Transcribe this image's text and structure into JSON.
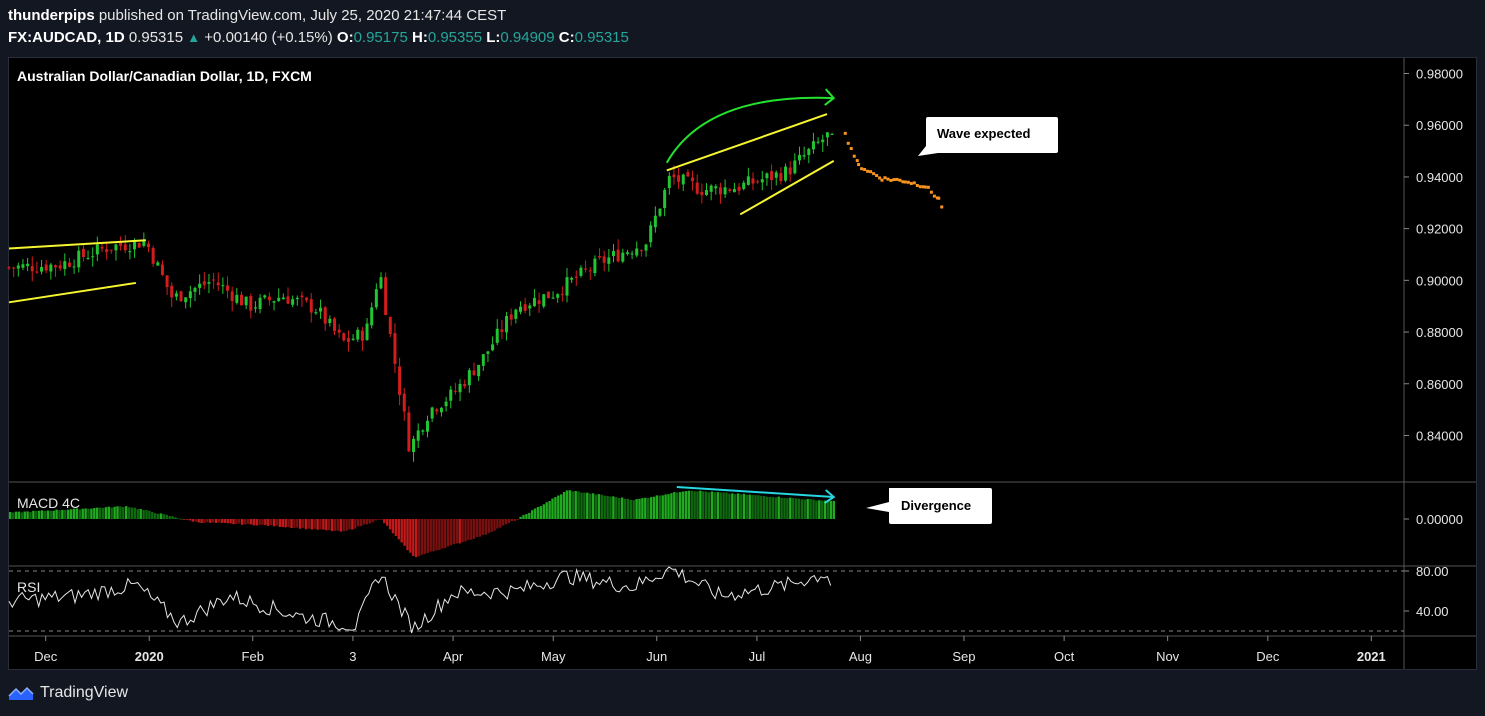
{
  "header": {
    "author": "thunderpips",
    "published": "published on TradingView.com, July 25, 2020 21:47:44 CEST",
    "symbol": "FX:AUDCAD, 1D",
    "last": "0.95315",
    "change": "+0.00140 (+0.15%)",
    "o_label": "O:",
    "o": "0.95175",
    "h_label": "H:",
    "h": "0.95355",
    "l_label": "L:",
    "l": "0.94909",
    "c_label": "C:",
    "c": "0.95315"
  },
  "branding": {
    "name": "TradingView"
  },
  "colors": {
    "up": "#26a69a",
    "bull_candle": "#22c531",
    "bear_candle": "#d21d1d",
    "wedge": "#f5f530",
    "arrow_green": "#22e22e",
    "arrow_cyan": "#26d6e0",
    "projection": "#f7931e"
  },
  "chart_data": {
    "type": "candlestick",
    "title": "Australian Dollar/Canadian Dollar, 1D, FXCM",
    "price_axis": [
      "0.98000",
      "0.96000",
      "0.94000",
      "0.92000",
      "0.90000",
      "0.88000",
      "0.86000",
      "0.84000"
    ],
    "ylim": [
      0.822,
      0.986
    ],
    "x_ticks": [
      "Dec",
      "2020",
      "Feb",
      "3",
      "Apr",
      "May",
      "Jun",
      "Jul",
      "Aug",
      "Sep",
      "Oct",
      "Nov",
      "Dec",
      "2021"
    ],
    "price_path": [
      {
        "date": "2019-11-20",
        "value": 0.905
      },
      {
        "date": "2019-12-05",
        "value": 0.906
      },
      {
        "date": "2019-12-20",
        "value": 0.913
      },
      {
        "date": "2019-12-31",
        "value": 0.915
      },
      {
        "date": "2020-01-08",
        "value": 0.893
      },
      {
        "date": "2020-01-20",
        "value": 0.9
      },
      {
        "date": "2020-01-31",
        "value": 0.89
      },
      {
        "date": "2020-02-10",
        "value": 0.894
      },
      {
        "date": "2020-02-20",
        "value": 0.889
      },
      {
        "date": "2020-02-28",
        "value": 0.876
      },
      {
        "date": "2020-03-06",
        "value": 0.88
      },
      {
        "date": "2020-03-10",
        "value": 0.904
      },
      {
        "date": "2020-03-13",
        "value": 0.88
      },
      {
        "date": "2020-03-19",
        "value": 0.835
      },
      {
        "date": "2020-03-25",
        "value": 0.85
      },
      {
        "date": "2020-04-01",
        "value": 0.856
      },
      {
        "date": "2020-04-10",
        "value": 0.87
      },
      {
        "date": "2020-04-20",
        "value": 0.89
      },
      {
        "date": "2020-05-01",
        "value": 0.895
      },
      {
        "date": "2020-05-15",
        "value": 0.907
      },
      {
        "date": "2020-05-29",
        "value": 0.915
      },
      {
        "date": "2020-06-05",
        "value": 0.94
      },
      {
        "date": "2020-06-15",
        "value": 0.935
      },
      {
        "date": "2020-06-25",
        "value": 0.936
      },
      {
        "date": "2020-07-10",
        "value": 0.942
      },
      {
        "date": "2020-07-22",
        "value": 0.956
      },
      {
        "date": "2020-07-24",
        "value": 0.953
      }
    ],
    "projection": [
      {
        "date": "2020-07-27",
        "value": 0.957
      },
      {
        "date": "2020-07-31",
        "value": 0.945
      },
      {
        "date": "2020-08-07",
        "value": 0.94
      },
      {
        "date": "2020-08-14",
        "value": 0.939
      },
      {
        "date": "2020-08-20",
        "value": 0.937
      },
      {
        "date": "2020-08-24",
        "value": 0.932
      },
      {
        "date": "2020-08-25",
        "value": 0.929
      }
    ],
    "annotations": [
      "Wave expected",
      "Divergence"
    ],
    "macd": {
      "label": "MACD 4C",
      "axis": [
        "0.00000"
      ],
      "path": [
        {
          "date": "2019-11-20",
          "value": 0.2
        },
        {
          "date": "2019-12-25",
          "value": 0.4
        },
        {
          "date": "2020-01-15",
          "value": -0.1
        },
        {
          "date": "2020-02-05",
          "value": -0.2
        },
        {
          "date": "2020-02-28",
          "value": -0.4
        },
        {
          "date": "2020-03-10",
          "value": 0.0
        },
        {
          "date": "2020-03-20",
          "value": -1.2
        },
        {
          "date": "2020-04-10",
          "value": -0.5
        },
        {
          "date": "2020-04-20",
          "value": 0.0
        },
        {
          "date": "2020-05-05",
          "value": 0.9
        },
        {
          "date": "2020-05-25",
          "value": 0.6
        },
        {
          "date": "2020-06-10",
          "value": 0.9
        },
        {
          "date": "2020-07-24",
          "value": 0.55
        }
      ]
    },
    "rsi": {
      "label": "RSI",
      "axis": [
        "80.00",
        "40.00"
      ],
      "ylim": [
        15,
        85
      ],
      "path": [
        {
          "date": "2019-11-20",
          "value": 50
        },
        {
          "date": "2019-12-10",
          "value": 55
        },
        {
          "date": "2019-12-28",
          "value": 66
        },
        {
          "date": "2020-01-10",
          "value": 28
        },
        {
          "date": "2020-01-25",
          "value": 55
        },
        {
          "date": "2020-02-15",
          "value": 35
        },
        {
          "date": "2020-03-03",
          "value": 25
        },
        {
          "date": "2020-03-10",
          "value": 78
        },
        {
          "date": "2020-03-20",
          "value": 22
        },
        {
          "date": "2020-04-01",
          "value": 58
        },
        {
          "date": "2020-04-20",
          "value": 60
        },
        {
          "date": "2020-05-05",
          "value": 75
        },
        {
          "date": "2020-05-25",
          "value": 64
        },
        {
          "date": "2020-06-05",
          "value": 83
        },
        {
          "date": "2020-06-20",
          "value": 55
        },
        {
          "date": "2020-07-10",
          "value": 66
        },
        {
          "date": "2020-07-22",
          "value": 78
        },
        {
          "date": "2020-07-24",
          "value": 58
        }
      ]
    }
  }
}
